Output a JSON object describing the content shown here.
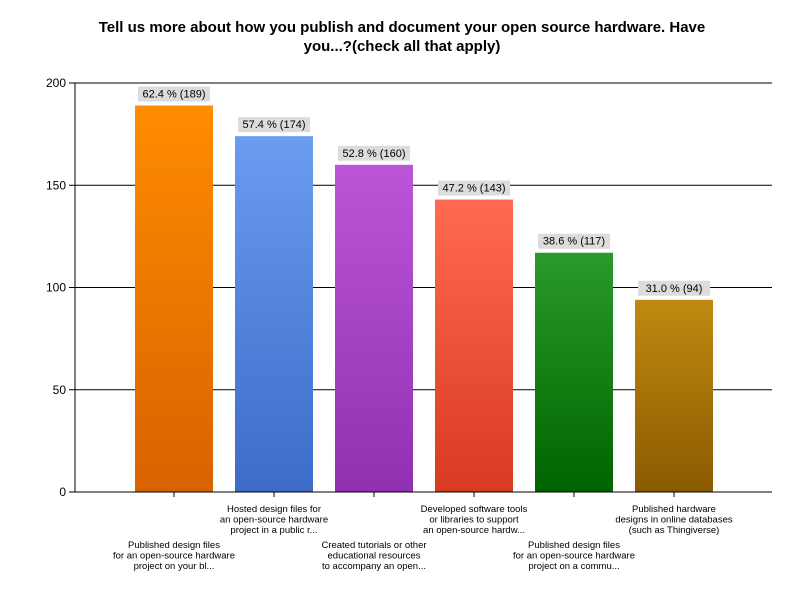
{
  "chart_data": {
    "type": "bar",
    "title_lines": [
      "Tell us more about how you publish and document your open source hardware. Have",
      "you...?(check all that apply)"
    ],
    "xlabel": "",
    "ylabel": "",
    "ylim": [
      0,
      200
    ],
    "yticks": [
      0,
      50,
      100,
      150,
      200
    ],
    "grid": true,
    "legend": "none",
    "categories": [
      [
        "Published design files",
        "for an open-source hardware",
        "project on your bl..."
      ],
      [
        "Hosted design files for",
        "an open-source hardware",
        "project in a public r..."
      ],
      [
        "Created tutorials or other",
        "educational resources",
        "to accompany an open..."
      ],
      [
        "Developed software tools",
        "or libraries to support",
        "an open-source hardw..."
      ],
      [
        "Published design files",
        "for an open-source hardware",
        "project on a commu..."
      ],
      [
        "Published hardware",
        "designs in online databases",
        "(such as Thingiverse)"
      ]
    ],
    "values": [
      189,
      174,
      160,
      143,
      117,
      94
    ],
    "data_labels": [
      "62.4 % (189)",
      "57.4 % (174)",
      "52.8 % (160)",
      "47.2 % (143)",
      "38.6 % (117)",
      "31.0 % (94)"
    ],
    "colors": [
      [
        "#ff8c00",
        "#d86200"
      ],
      [
        "#6a9cf0",
        "#3c6cc8"
      ],
      [
        "#bc55d8",
        "#9030b0"
      ],
      [
        "#ff6a50",
        "#d83a22"
      ],
      [
        "#2a9a2a",
        "#006400"
      ],
      [
        "#c08a10",
        "#8a5a00"
      ]
    ]
  }
}
